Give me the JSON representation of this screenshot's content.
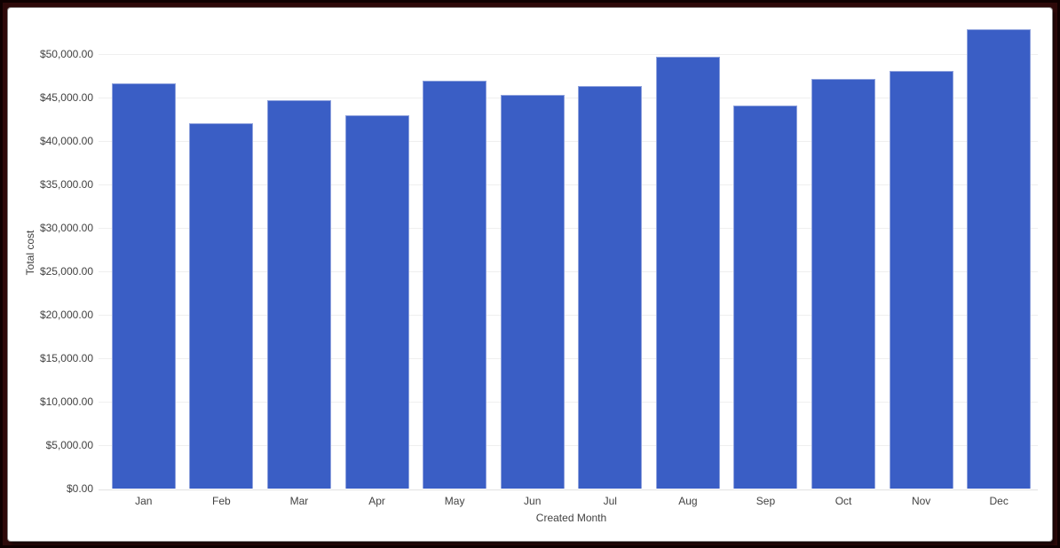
{
  "frame": {
    "border_color": "#2e0909",
    "outer_edge_color": "#0f0000",
    "card_background": "#ffffff"
  },
  "chart_data": {
    "type": "bar",
    "title": "",
    "xlabel": "Created Month",
    "ylabel": "Total cost",
    "categories": [
      "Jan",
      "Feb",
      "Mar",
      "Apr",
      "May",
      "Jun",
      "Jul",
      "Aug",
      "Sep",
      "Oct",
      "Nov",
      "Dec"
    ],
    "values": [
      46600,
      42000,
      44700,
      43000,
      46900,
      45300,
      46300,
      49700,
      44100,
      47100,
      48100,
      52900
    ],
    "y_ticks": [
      0,
      5000,
      10000,
      15000,
      20000,
      25000,
      30000,
      35000,
      40000,
      45000,
      50000
    ],
    "y_tick_labels": [
      "$0.00",
      "$5,000.00",
      "$10,000.00",
      "$15,000.00",
      "$20,000.00",
      "$25,000.00",
      "$30,000.00",
      "$35,000.00",
      "$40,000.00",
      "$45,000.00",
      "$50,000.00"
    ],
    "ylim": [
      0,
      53500
    ],
    "grid": true,
    "legend": "none",
    "bar_color": "#3a5ec5",
    "bar_border_color": "#8fa2dd",
    "gridline_color": "#efefef",
    "baseline_color": "#e2e2e2",
    "label_color": "#424242"
  }
}
